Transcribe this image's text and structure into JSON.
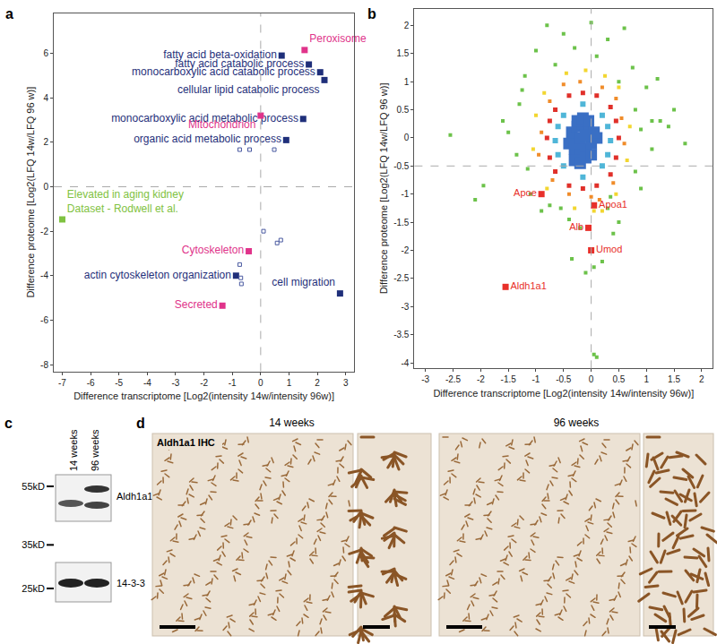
{
  "chart_data": [
    {
      "panel_label": "a",
      "type": "scatter",
      "x_label": "Difference transcriptome [Log2(intensity 14w/intensity 96w)]",
      "y_label": "Difference proteome [Log2(LFQ 14w/LFQ 96 w)]",
      "xlim": [
        -7.3,
        3.3
      ],
      "xticks": [
        -7,
        -6,
        -5,
        -4,
        -3,
        -2,
        -1,
        0,
        1,
        2,
        3
      ],
      "ylim": [
        -8.3,
        7.8
      ],
      "yticks": [
        -8,
        -6,
        -4,
        -2,
        0,
        2,
        4,
        6
      ],
      "grid": false,
      "reference_lines": {
        "x": 0,
        "y": 0
      },
      "series": [
        {
          "color": "#1f2f7a",
          "marker": "square",
          "x": [
            0.74,
            1.7,
            2.1,
            2.25,
            1.5,
            0.9,
            -0.87,
            2.8
          ],
          "y": [
            5.9,
            5.5,
            5.15,
            4.8,
            3.05,
            2.1,
            -4.0,
            -4.8
          ],
          "labels": [
            "fatty acid beta-oxidation",
            "fatty acid catabolic process",
            "monocarboxylic acid catabolic process",
            "cellular lipid catabolic process",
            "monocarboxylic acid metabolic process",
            "organic acid metabolic process",
            "actin cytoskeleton organization",
            "cell migration"
          ]
        },
        {
          "color": "#e0338a",
          "marker": "square",
          "x": [
            1.55,
            0.0,
            -0.42,
            -1.35
          ],
          "y": [
            6.15,
            3.2,
            -2.9,
            -5.35
          ],
          "labels": [
            "Peroxisome",
            "Mitochondrion",
            "Cytoskeleton",
            "Secreted"
          ]
        },
        {
          "color": "#7fc241",
          "marker": "square",
          "x": [
            -7.0
          ],
          "y": [
            -1.47
          ],
          "labels": [
            "Elevated in aging kidney\nDataset - Rodwell et al."
          ]
        },
        {
          "color": "#4a5aa0",
          "marker": "square-open",
          "x": [
            -0.74,
            -0.39,
            0.48,
            0.1,
            0.58,
            0.71,
            -0.74,
            -0.7,
            -0.68
          ],
          "y": [
            1.67,
            1.67,
            1.67,
            -2.0,
            -2.53,
            -2.4,
            -3.5,
            -4.1,
            -4.37
          ]
        }
      ]
    },
    {
      "panel_label": "b",
      "type": "scatter",
      "x_label": "Difference transcriptome [Log2(intensity 14w/intensity 96w)]",
      "y_label": "Difference proteome [Log2(LFQ 14w/LFQ 96 w)]",
      "xlim": [
        -3.2,
        2.2
      ],
      "xticks": [
        -3,
        -2.5,
        -2,
        -1.5,
        -1,
        -0.5,
        0,
        0.5,
        1,
        1.5,
        2
      ],
      "ylim": [
        -4.1,
        2.3
      ],
      "yticks": [
        -4,
        -3.5,
        -3,
        -2.5,
        -2,
        -1.5,
        -1,
        -0.5,
        0,
        0.5,
        1,
        1.5,
        2
      ],
      "grid": false,
      "reference_lines": {
        "x": 0,
        "y": -0.5
      },
      "series": [
        {
          "color": "#3a6fc4",
          "marker": "square",
          "x": [
            -0.4,
            -0.3,
            -0.2,
            -0.1,
            0,
            0.1,
            -0.35,
            -0.25,
            -0.15,
            -0.05,
            0.05,
            -0.3,
            -0.2,
            -0.1,
            0,
            -0.25,
            -0.15,
            -0.05,
            -0.2,
            -0.1
          ],
          "y": [
            -0.1,
            -0.2,
            -0.3,
            -0.2,
            -0.1,
            0,
            0.1,
            0.2,
            0.25,
            0.15,
            0.1,
            -0.4,
            -0.45,
            -0.35,
            -0.3,
            0.3,
            0.35,
            0.3,
            0,
            0.05
          ]
        },
        {
          "color": "#4fb6d8",
          "marker": "square",
          "x": [
            -0.65,
            0.35,
            -0.15,
            -0.15,
            -0.5,
            0.2,
            -0.5,
            0.2,
            -0.6,
            0.3,
            -0.6,
            0.3
          ],
          "y": [
            -0.05,
            -0.05,
            0.6,
            -0.7,
            0.4,
            0.4,
            -0.5,
            -0.5,
            0.2,
            0.2,
            -0.3,
            -0.3
          ]
        },
        {
          "color": "#e0302a",
          "marker": "square",
          "x": [
            -0.8,
            0.5,
            -0.15,
            -0.15,
            -0.65,
            0.35,
            -0.65,
            0.35,
            -0.75,
            0.45,
            -0.75,
            0.45,
            -0.4,
            0.1,
            -0.4,
            0.1
          ],
          "y": [
            0,
            0,
            0.8,
            -0.9,
            0.5,
            0.55,
            -0.6,
            -0.65,
            0.3,
            0.3,
            -0.35,
            -0.35,
            0.75,
            0.75,
            -0.85,
            -0.85
          ]
        },
        {
          "color": "#f08c2a",
          "marker": "square",
          "x": [
            -0.9,
            0.6,
            -0.2,
            0,
            -0.75,
            0.45,
            -0.7,
            0.4,
            -0.95,
            0.55,
            -0.5,
            0.2,
            -0.4,
            0.15
          ],
          "y": [
            0.1,
            -0.1,
            1.0,
            -1.05,
            0.65,
            0.7,
            -0.75,
            -0.8,
            -0.3,
            0.35,
            0.95,
            0.9,
            -1.0,
            -1.1
          ]
        },
        {
          "color": "#f2d630",
          "marker": "square",
          "x": [
            -1.0,
            0.7,
            -0.1,
            0.05,
            -0.85,
            0.5,
            -0.8,
            0.45,
            -1.05,
            0.65,
            -0.45,
            0.25,
            -0.3,
            0.2
          ],
          "y": [
            0.4,
            0.2,
            1.2,
            -1.3,
            0.8,
            0.9,
            -0.9,
            -1.0,
            -0.2,
            -0.4,
            1.15,
            1.1,
            -1.25,
            -1.3
          ]
        },
        {
          "color": "#6cc24a",
          "marker": "square",
          "x": [
            -2.55,
            -2.1,
            -1.95,
            -1.5,
            -1.3,
            -1.35,
            -1.2,
            -1.1,
            -1.0,
            -0.8,
            -0.5,
            -0.3,
            0,
            0.3,
            0.1,
            0.5,
            0.6,
            0.8,
            1.0,
            1.1,
            1.1,
            1.2,
            1.4,
            1.5,
            1.7,
            1.25,
            0.8,
            0.9,
            0.5,
            0.4,
            0.2,
            0.05,
            0.05,
            0.1,
            0.3,
            -0.2,
            -0.4,
            -0.55,
            -0.75,
            -0.9,
            -1.15,
            -1.6,
            -1.25,
            0.75,
            0.9,
            -0.35,
            -0.1,
            -0.65,
            0.35
          ],
          "y": [
            0.05,
            -1.1,
            -0.85,
            0.1,
            0.6,
            -0.3,
            1.1,
            -1.0,
            1.55,
            2.0,
            1.85,
            1.6,
            2.05,
            1.75,
            1.45,
            1.0,
            1.95,
            0.5,
            0.9,
            0.3,
            -0.2,
            1.05,
            0.2,
            0.5,
            -0.1,
            0.3,
            -0.6,
            -0.9,
            -1.5,
            -1.7,
            -2.2,
            -2.3,
            -3.85,
            -3.9,
            -1.25,
            -1.6,
            -1.45,
            -1.25,
            -1.2,
            -1.3,
            -0.55,
            0.3,
            0.85,
            1.25,
            0.15,
            -2.15,
            -2.4,
            1.3,
            -1.05
          ]
        },
        {
          "color": "#e8302a",
          "marker": "square",
          "x": [
            -0.9,
            0.05,
            -0.05,
            0.0,
            -1.55
          ],
          "y": [
            -1.0,
            -1.2,
            -1.6,
            -2.0,
            -2.65
          ],
          "labels": [
            "Apoe",
            "Apoa1",
            "Alb",
            "Umod",
            "Aldh1a1"
          ]
        }
      ]
    }
  ],
  "figure_panels": {
    "c": {
      "panel_label": "c",
      "lanes": [
        "14 weeks",
        "96 weeks"
      ],
      "markers": [
        {
          "value": 55,
          "label": "55kD"
        },
        {
          "value": 35,
          "label": "35kD"
        },
        {
          "value": 25,
          "label": "25kD"
        }
      ],
      "blots": [
        "Aldh1a1",
        "14-3-3"
      ]
    },
    "d": {
      "panel_label": "d",
      "conditions": [
        "14 weeks",
        "96 weeks"
      ],
      "stain": "Aldh1a1 IHC"
    }
  }
}
